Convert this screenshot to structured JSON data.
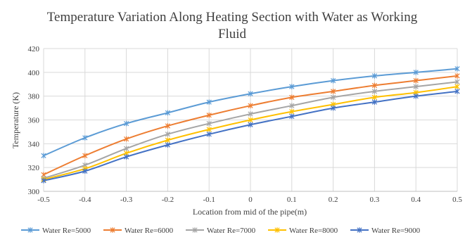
{
  "chart_data": {
    "type": "line",
    "title_line1": "Temperature Variation Along Heating Section with Water as Working",
    "title_line2": "Fluid",
    "xlabel": "Location from mid of the pipe(m)",
    "ylabel": "Temperature (K)",
    "x": [
      -0.5,
      -0.4,
      -0.3,
      -0.2,
      -0.1,
      0,
      0.1,
      0.2,
      0.3,
      0.4,
      0.5
    ],
    "x_tick_labels": [
      "-0.5",
      "-0.4",
      "-0.3",
      "-0.2",
      "-0.1",
      "0",
      "0.1",
      "0.2",
      "0.3",
      "0.4",
      "0.5"
    ],
    "xlim": [
      -0.5,
      0.5
    ],
    "ylim": [
      300,
      420
    ],
    "y_ticks": [
      300,
      320,
      340,
      360,
      380,
      400,
      420
    ],
    "y_tick_labels": [
      "300",
      "320",
      "340",
      "360",
      "380",
      "400",
      "420"
    ],
    "grid": true,
    "legend_position": "bottom",
    "series": [
      {
        "name": "Water Re=5000",
        "color": "#5b9bd5",
        "values": [
          330,
          345,
          357,
          366,
          375,
          382,
          388,
          393,
          397,
          400,
          403
        ]
      },
      {
        "name": "Water Re=6000",
        "color": "#ed7d31",
        "values": [
          314,
          330,
          344,
          355,
          364,
          372,
          379,
          384,
          389,
          393,
          397
        ]
      },
      {
        "name": "Water Re=7000",
        "color": "#a5a5a5",
        "values": [
          311,
          322,
          336,
          348,
          357,
          365,
          372,
          379,
          384,
          388,
          392
        ]
      },
      {
        "name": "Water Re=8000",
        "color": "#ffc000",
        "values": [
          310,
          319,
          332,
          343,
          352,
          360,
          367,
          373,
          379,
          383,
          388
        ]
      },
      {
        "name": "Water Re=9000",
        "color": "#4472c4",
        "values": [
          309,
          317,
          329,
          339,
          348,
          356,
          363,
          370,
          375,
          380,
          384
        ]
      }
    ]
  }
}
